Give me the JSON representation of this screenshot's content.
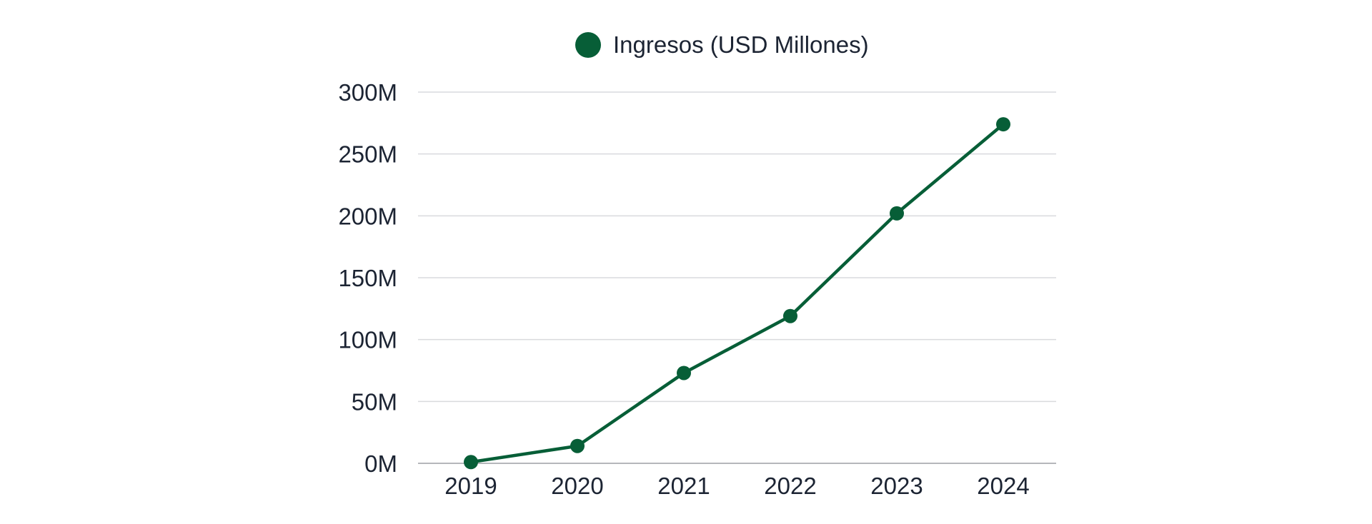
{
  "colors": {
    "series": "#075e37",
    "text": "#1c2433",
    "grid": "#d9dadd"
  },
  "chart_data": {
    "type": "line",
    "title": "",
    "xlabel": "",
    "ylabel": "",
    "categories": [
      "2019",
      "2020",
      "2021",
      "2022",
      "2023",
      "2024"
    ],
    "series": [
      {
        "name": "Ingresos (USD Millones)",
        "values": [
          1,
          14,
          73,
          119,
          202,
          274
        ]
      }
    ],
    "ylim": [
      0,
      300
    ],
    "yticks": [
      0,
      50,
      100,
      150,
      200,
      250,
      300
    ],
    "ytick_labels": [
      "0M",
      "50M",
      "100M",
      "150M",
      "200M",
      "250M",
      "300M"
    ],
    "legend": "top-center",
    "grid": true
  }
}
